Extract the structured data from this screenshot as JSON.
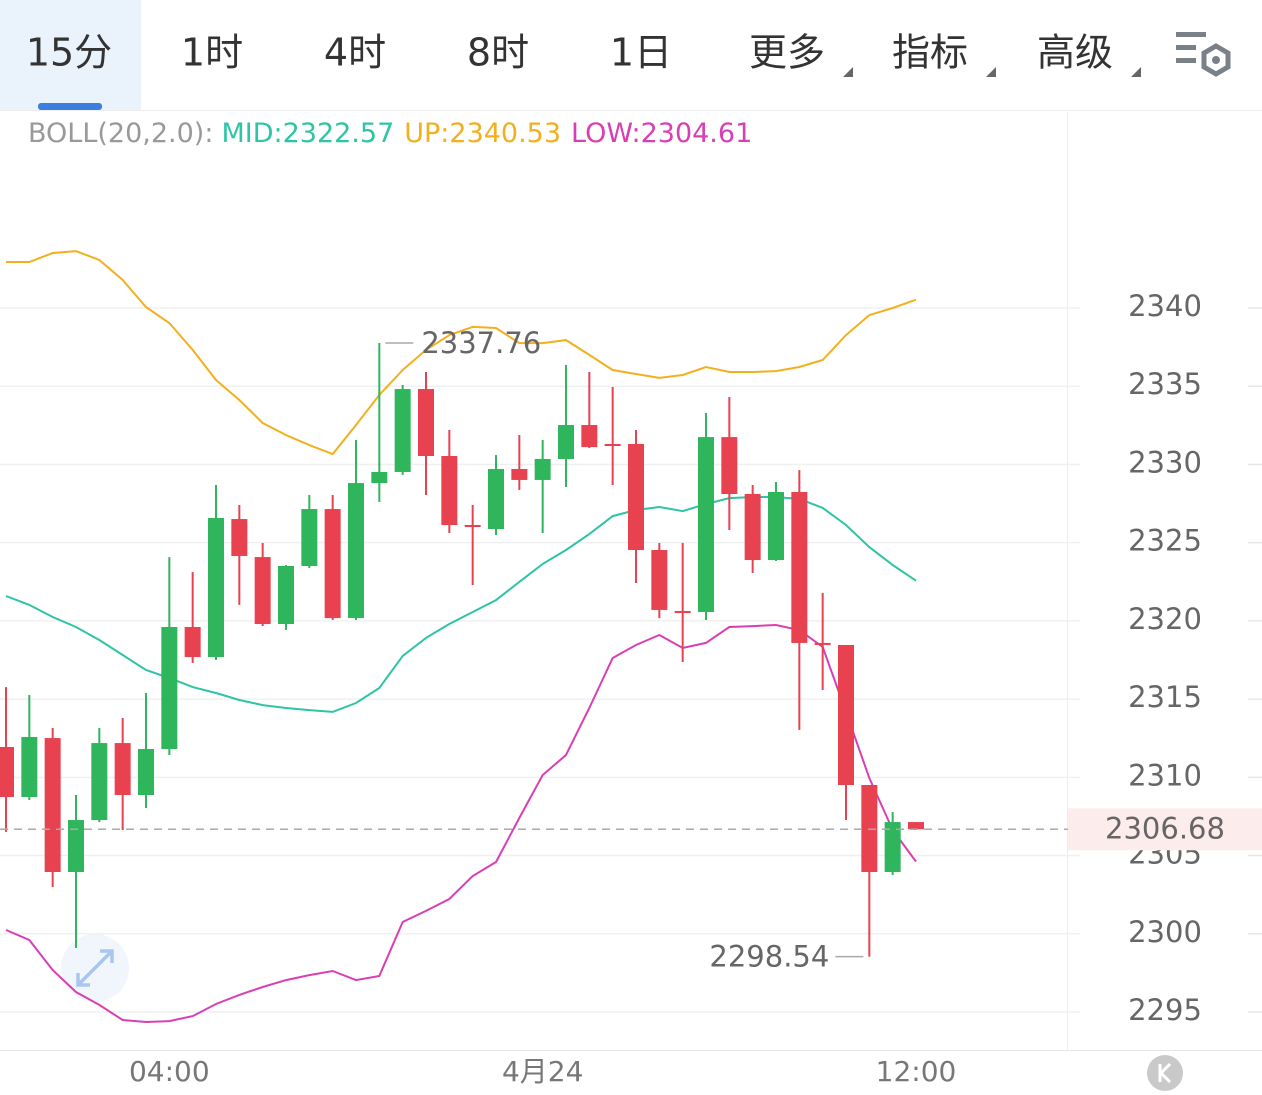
{
  "tabs": [
    "15分",
    "1时",
    "4时",
    "8时",
    "1日",
    "更多",
    "指标",
    "高级"
  ],
  "selected_tab": 0,
  "dropdown_tabs": [
    5,
    6,
    7
  ],
  "chart_data": {
    "type": "candlestick",
    "indicator_title": "BOLL(20,2.0):",
    "categories": [
      null,
      null,
      null,
      null,
      null,
      null,
      null,
      "04:00",
      null,
      null,
      null,
      null,
      null,
      null,
      null,
      null,
      null,
      null,
      null,
      null,
      null,
      null,
      null,
      "4月24",
      null,
      null,
      null,
      null,
      null,
      null,
      null,
      null,
      null,
      null,
      null,
      null,
      null,
      null,
      null,
      "12:00"
    ],
    "open": [
      2311.94,
      2308.74,
      2312.51,
      2303.95,
      2307.27,
      2312.19,
      2308.87,
      2311.81,
      2319.61,
      2317.69,
      2326.51,
      2324.08,
      2319.8,
      2323.51,
      2327.15,
      2320.18,
      2328.81,
      2329.52,
      2334.82,
      2330.54,
      2326.13,
      2325.87,
      2329.71,
      2329.01,
      2330.35,
      2332.52,
      2331.31,
      2331.31,
      2324.53,
      2320.63,
      2320.57,
      2331.75,
      2328.11,
      2323.89,
      2328.24,
      2318.59,
      2318.46,
      2309.51,
      2303.95,
      2307.14
    ],
    "high": [
      2315.77,
      2315.26,
      2313.15,
      2308.87,
      2313.15,
      2313.79,
      2315.39,
      2324.08,
      2323.12,
      2328.69,
      2327.41,
      2324.98,
      2323.57,
      2328.05,
      2328.05,
      2331.56,
      2337.76,
      2335.08,
      2335.91,
      2332.2,
      2327.41,
      2330.6,
      2331.88,
      2331.56,
      2336.36,
      2335.91,
      2334.95,
      2332.2,
      2324.98,
      2324.98,
      2333.29,
      2334.31,
      2328.69,
      2328.88,
      2329.64,
      2321.78,
      2318.46,
      2309.51,
      2307.78,
      2307.14
    ],
    "low": [
      2306.51,
      2308.55,
      2302.99,
      2299.09,
      2307.14,
      2306.63,
      2308.04,
      2311.43,
      2317.31,
      2317.5,
      2321.02,
      2319.67,
      2319.42,
      2323.38,
      2320.06,
      2320.06,
      2327.6,
      2329.33,
      2328.05,
      2325.62,
      2322.29,
      2325.49,
      2328.37,
      2325.62,
      2328.56,
      2331.05,
      2328.69,
      2322.42,
      2320.18,
      2317.37,
      2320.06,
      2325.81,
      2323.06,
      2323.83,
      2313.03,
      2315.58,
      2307.27,
      2298.54,
      2303.76,
      2306.68
    ],
    "close": [
      2308.74,
      2312.58,
      2303.95,
      2307.27,
      2312.19,
      2308.87,
      2311.81,
      2319.61,
      2317.69,
      2326.58,
      2324.15,
      2319.8,
      2323.51,
      2327.15,
      2320.18,
      2328.81,
      2329.52,
      2334.82,
      2330.54,
      2326.13,
      2326.0,
      2329.71,
      2329.01,
      2330.35,
      2332.52,
      2331.11,
      2331.18,
      2324.53,
      2320.7,
      2320.57,
      2331.75,
      2328.11,
      2323.89,
      2328.24,
      2318.59,
      2318.52,
      2309.51,
      2303.95,
      2307.14,
      2306.68
    ],
    "up_color": "#2fb55c",
    "down_color": "#e8414f",
    "series": [
      {
        "name": "MID:",
        "color": "#2ec4a5",
        "values": [
          2321.59,
          2321.02,
          2320.25,
          2319.61,
          2318.78,
          2317.82,
          2316.86,
          2316.35,
          2315.77,
          2315.39,
          2314.94,
          2314.62,
          2314.43,
          2314.3,
          2314.18,
          2314.75,
          2315.71,
          2317.76,
          2318.91,
          2319.8,
          2320.57,
          2321.33,
          2322.49,
          2323.64,
          2324.53,
          2325.55,
          2326.7,
          2327.09,
          2327.28,
          2327.02,
          2327.47,
          2327.85,
          2327.92,
          2327.92,
          2327.79,
          2327.22,
          2326.13,
          2324.72,
          2323.57,
          2322.57
        ]
      },
      {
        "name": "UP:",
        "color": "#f2b01e",
        "values": [
          2342.94,
          2342.94,
          2343.52,
          2343.64,
          2343.07,
          2341.79,
          2340.06,
          2339.04,
          2337.32,
          2335.4,
          2334.12,
          2332.65,
          2331.88,
          2331.24,
          2330.67,
          2332.52,
          2334.44,
          2336.04,
          2337.32,
          2338.27,
          2338.79,
          2338.72,
          2337.76,
          2337.76,
          2337.95,
          2337.0,
          2336.04,
          2335.78,
          2335.53,
          2335.72,
          2336.23,
          2335.91,
          2335.91,
          2335.97,
          2336.23,
          2336.68,
          2338.27,
          2339.55,
          2340.0,
          2340.53
        ]
      },
      {
        "name": "LOW:",
        "color": "#d93fb4",
        "values": [
          2300.24,
          2299.6,
          2297.68,
          2296.28,
          2295.45,
          2294.49,
          2294.36,
          2294.42,
          2294.74,
          2295.51,
          2296.09,
          2296.6,
          2297.04,
          2297.36,
          2297.62,
          2297.04,
          2297.3,
          2300.75,
          2301.46,
          2302.22,
          2303.69,
          2304.59,
          2307.4,
          2310.15,
          2311.43,
          2314.43,
          2317.63,
          2318.46,
          2319.1,
          2318.27,
          2318.59,
          2319.61,
          2319.67,
          2319.74,
          2319.42,
          2318.33,
          2314.18,
          2309.96,
          2306.63,
          2304.61
        ]
      }
    ],
    "ylim": [
      2292.57,
      2352.53
    ],
    "yticks": [
      2295,
      2300,
      2305,
      2310,
      2315,
      2320,
      2325,
      2330,
      2335,
      2340
    ],
    "grid": true
  }
}
